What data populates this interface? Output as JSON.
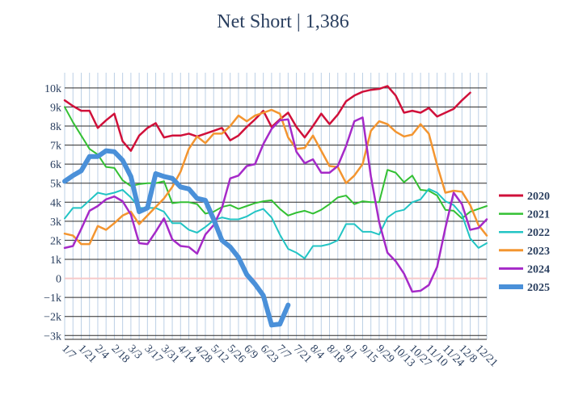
{
  "chart_data": {
    "type": "line",
    "title": "Net Short | 1,386",
    "xlabel": "",
    "ylabel": "",
    "ylim": [
      -3200,
      10800
    ],
    "y_ticks": [
      -3000,
      -2000,
      -1000,
      0,
      1000,
      2000,
      3000,
      4000,
      5000,
      6000,
      7000,
      8000,
      9000,
      10000
    ],
    "y_tick_labels": [
      "−3k",
      "−2k",
      "−1k",
      "0",
      "1k",
      "2k",
      "3k",
      "4k",
      "5k",
      "6k",
      "7k",
      "8k",
      "9k",
      "10k"
    ],
    "x_tick_labels": [
      "1/7",
      "1/21",
      "2/4",
      "2/18",
      "3/3",
      "3/17",
      "3/31",
      "4/14",
      "4/28",
      "5/12",
      "5/26",
      "6/9",
      "6/23",
      "7/7",
      "7/21",
      "8/4",
      "8/18",
      "9/1",
      "9/15",
      "9/29",
      "10/13",
      "10/27",
      "11/10",
      "11/24",
      "12/8",
      "12/21"
    ],
    "x_week_range": [
      1,
      52
    ],
    "grid": true,
    "legend_position": "right",
    "series": [
      {
        "name": "2020",
        "color": "#d0103a",
        "width": 2.5,
        "values": [
          9350,
          9050,
          8800,
          8800,
          7900,
          8300,
          8650,
          7200,
          6700,
          7500,
          7900,
          8150,
          7400,
          7500,
          7500,
          7600,
          7450,
          7600,
          7750,
          7900,
          7250,
          7500,
          7950,
          8350,
          8800,
          7950,
          8350,
          8700,
          7950,
          7400,
          8000,
          8650,
          8100,
          8600,
          9300,
          9600,
          9800,
          9900,
          9950,
          10100,
          9600,
          8700,
          8800,
          8700,
          8950,
          8500,
          8700,
          8900,
          9350,
          9750
        ]
      },
      {
        "name": "2021",
        "color": "#33c033",
        "width": 2,
        "values": [
          9000,
          8200,
          7500,
          6800,
          6500,
          5850,
          5800,
          5150,
          4850,
          4950,
          5000,
          5000,
          5100,
          3950,
          4000,
          4000,
          3900,
          3400,
          3500,
          3750,
          3850,
          3650,
          3800,
          3950,
          4050,
          4100,
          3650,
          3300,
          3450,
          3550,
          3400,
          3600,
          3900,
          4250,
          4350,
          3900,
          4050,
          4000,
          4000,
          5700,
          5550,
          5050,
          5400,
          4650,
          4600,
          4350,
          3600,
          3550,
          3150,
          3500,
          3650,
          3800
        ]
      },
      {
        "name": "2022",
        "color": "#22c4c4",
        "width": 2,
        "values": [
          3150,
          3700,
          3700,
          4100,
          4500,
          4400,
          4500,
          4650,
          4250,
          3700,
          3700,
          3700,
          3500,
          2900,
          2900,
          2550,
          2400,
          2700,
          3050,
          3200,
          3100,
          3100,
          3250,
          3500,
          3650,
          3200,
          2300,
          1550,
          1350,
          1050,
          1700,
          1700,
          1800,
          2000,
          2850,
          2850,
          2450,
          2450,
          2300,
          3200,
          3500,
          3600,
          4000,
          4150,
          4700,
          4500,
          4050,
          3850,
          3350,
          2100,
          1600,
          1850
        ]
      },
      {
        "name": "2023",
        "color": "#f39530",
        "width": 2.5,
        "values": [
          2350,
          2250,
          1800,
          1800,
          2750,
          2550,
          2900,
          3300,
          3500,
          2850,
          3300,
          3750,
          4200,
          4800,
          5600,
          6800,
          7450,
          7100,
          7600,
          7600,
          8000,
          8550,
          8250,
          8550,
          8700,
          8850,
          8650,
          7400,
          6800,
          6850,
          7500,
          6700,
          5900,
          5850,
          5000,
          5400,
          6000,
          7750,
          8250,
          8100,
          7700,
          7450,
          7550,
          8100,
          7600,
          5950,
          4500,
          4600,
          4550,
          3850,
          2800,
          2250
        ]
      },
      {
        "name": "2024",
        "color": "#a52ac8",
        "width": 2.5,
        "values": [
          1600,
          1700,
          2600,
          3550,
          3800,
          4150,
          4300,
          4050,
          3350,
          1850,
          1800,
          2450,
          3150,
          2050,
          1700,
          1650,
          1300,
          2300,
          2800,
          3700,
          5250,
          5400,
          5900,
          6000,
          7050,
          7850,
          8300,
          8350,
          6650,
          6050,
          6250,
          5550,
          5550,
          5900,
          6950,
          8250,
          8450,
          5350,
          2950,
          1350,
          900,
          250,
          -700,
          -650,
          -350,
          600,
          2650,
          4500,
          3900,
          2550,
          2650,
          3100
        ]
      },
      {
        "name": "2025",
        "color": "#4a90d9",
        "width": 6,
        "values": [
          5100,
          5400,
          5650,
          6400,
          6400,
          6700,
          6650,
          6200,
          5350,
          3500,
          3700,
          5500,
          5350,
          5250,
          4800,
          4700,
          4200,
          4100,
          3100,
          2000,
          1650,
          1100,
          200,
          -300,
          -900,
          -2450,
          -2400,
          -1400
        ]
      }
    ]
  }
}
